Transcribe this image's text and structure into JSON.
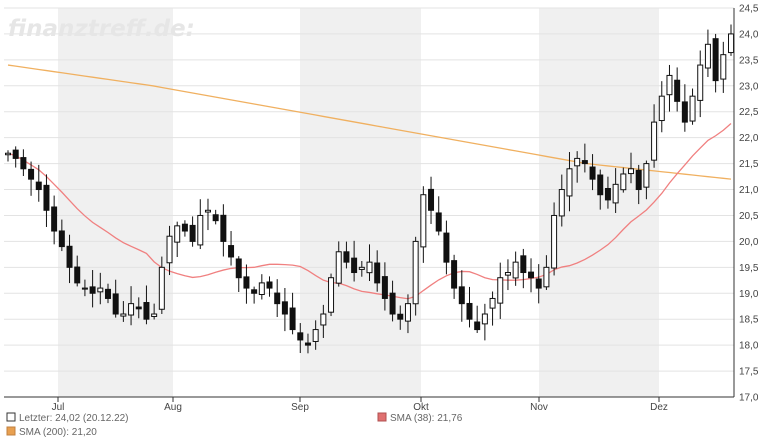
{
  "watermark": "finanztreff.de:",
  "legend": {
    "last": "Letzter: 24,02 (20.12.22)",
    "sma38": "SMA (38): 21,76",
    "sma200": "SMA (200): 21,20"
  },
  "colors": {
    "candle_body": "#111111",
    "candle_up_fill": "#ffffff",
    "sma38": "#f08080",
    "sma200": "#f0b060",
    "shade": "#f0f0f0",
    "grid": "#e3e3e3",
    "axis": "#333333"
  },
  "chart_data": {
    "type": "candlestick",
    "y_axis_position": "right",
    "grid": true,
    "ylim": [
      17.0,
      24.5
    ],
    "y_ticks": [
      "17,0",
      "17,5",
      "18,0",
      "18,5",
      "19,0",
      "19,5",
      "20,0",
      "20,5",
      "21,0",
      "21,5",
      "22,0",
      "22,5",
      "23,0",
      "23,5",
      "24,0",
      "24,5"
    ],
    "x_ticks": [
      "Jul",
      "Aug",
      "Sep",
      "Okt",
      "Nov",
      "Dez"
    ],
    "shaded_months": [
      "Jul",
      "Sep",
      "Nov"
    ],
    "approx_close_path": [
      21.7,
      21.6,
      21.4,
      21.2,
      21.0,
      20.6,
      20.2,
      19.9,
      19.5,
      19.2,
      19.1,
      19.0,
      19.1,
      18.9,
      18.6,
      18.6,
      18.8,
      18.7,
      18.5,
      18.6,
      19.5,
      20.1,
      20.3,
      20.2,
      20.0,
      20.5,
      20.6,
      20.4,
      20.0,
      19.7,
      19.3,
      19.1,
      19.0,
      19.2,
      19.1,
      18.8,
      18.6,
      18.3,
      18.1,
      18.0,
      18.3,
      18.6,
      19.3,
      19.8,
      19.6,
      19.4,
      19.5,
      19.6,
      19.2,
      18.9,
      18.6,
      18.5,
      18.8,
      20.0,
      20.9,
      20.6,
      20.2,
      19.6,
      19.1,
      18.8,
      18.5,
      18.3,
      18.6,
      18.9,
      19.3,
      19.4,
      19.6,
      19.4,
      19.3,
      19.1,
      19.5,
      20.5,
      21.0,
      21.4,
      21.6,
      21.5,
      21.2,
      20.9,
      20.8,
      21.1,
      21.3,
      21.4,
      21.0,
      21.5,
      22.3,
      22.8,
      23.2,
      22.7,
      22.3,
      22.8,
      23.4,
      23.8,
      23.1,
      23.6,
      24.0
    ],
    "series": [
      {
        "name": "SMA (38)",
        "last": 21.76
      },
      {
        "name": "SMA (200)",
        "last": 21.2
      }
    ]
  }
}
